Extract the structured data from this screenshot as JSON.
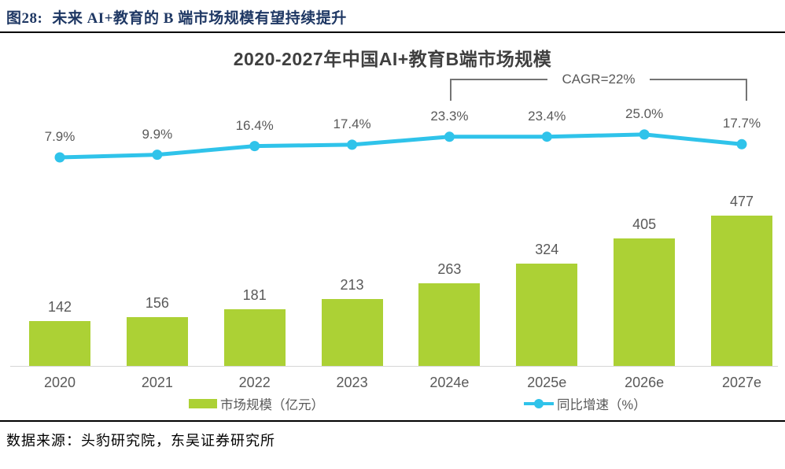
{
  "figure": {
    "label": "图28:",
    "title": "未来 AI+教育的 B 端市场规模有望持续提升"
  },
  "source_note": "数据来源：头豹研究院，东吴证券研究所",
  "colors": {
    "bar": "#acd135",
    "line": "#2fc3ea",
    "header_text": "#1f3864",
    "label_text": "#595959",
    "bracket": "#747474",
    "axis_line": "#d6d6d6"
  },
  "chart_data": {
    "type": "bar",
    "combo": "bar+line",
    "title": "2020-2027年中国AI+教育B端市场规模",
    "categories": [
      "2020",
      "2021",
      "2022",
      "2023",
      "2024e",
      "2025e",
      "2026e",
      "2027e"
    ],
    "series": [
      {
        "name": "市场规模（亿元）",
        "type": "bar",
        "values": [
          142,
          156,
          181,
          213,
          263,
          324,
          405,
          477
        ]
      },
      {
        "name": "同比增速（%）",
        "type": "line",
        "values": [
          7.9,
          9.9,
          16.4,
          17.4,
          23.3,
          23.4,
          25.0,
          17.7
        ]
      }
    ],
    "legend": [
      "市场规模（亿元）",
      "同比增速（%）"
    ],
    "legend_position": "bottom",
    "grid": false,
    "annotation": {
      "text": "CAGR=22%",
      "from_category": "2024e",
      "to_category": "2027e"
    },
    "bar_axis_range": [
      0,
      500
    ],
    "line_axis_range": [
      0,
      30
    ],
    "value_labels_shown": true
  }
}
